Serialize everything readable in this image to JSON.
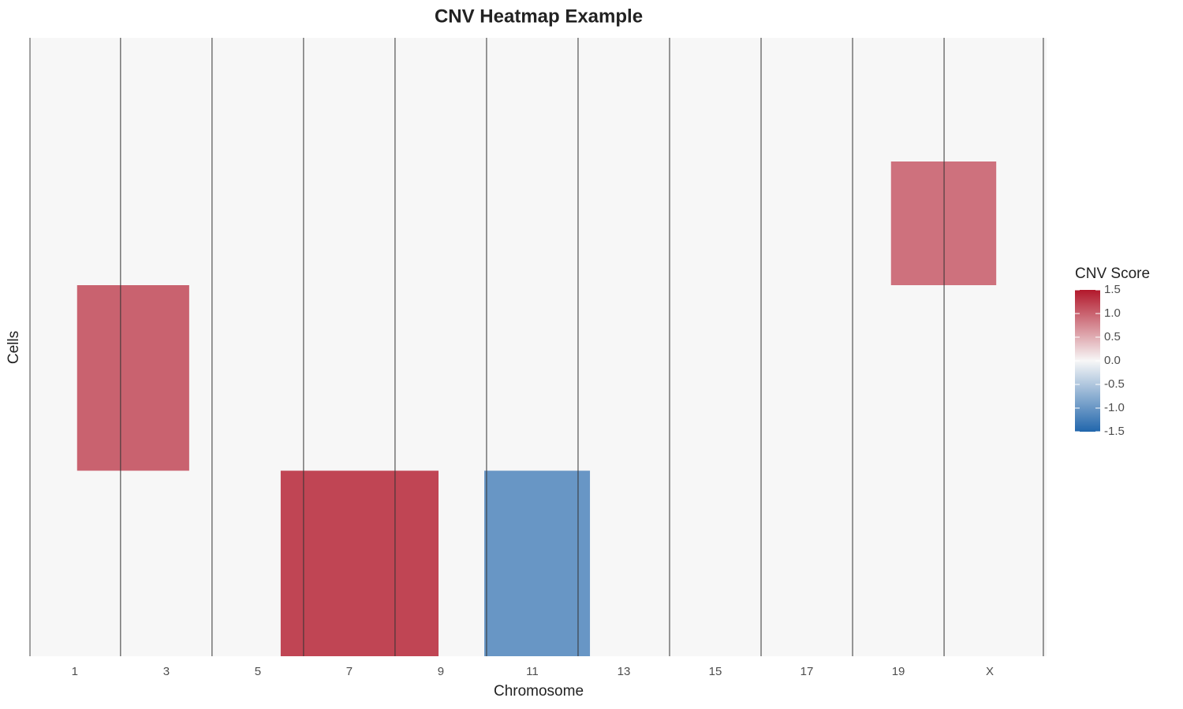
{
  "chart_data": {
    "type": "heatmap",
    "title": "CNV Heatmap Example",
    "x_label": "Chromosome",
    "y_label": "Cells",
    "xlim": [
      0.02,
      22.24
    ],
    "ylim": [
      0,
      150
    ],
    "xticks": [
      1,
      3,
      5,
      7,
      9,
      11,
      13,
      15,
      17,
      19,
      {
        "value": 21,
        "label": "X"
      }
    ],
    "boundaries": [
      2,
      4,
      6,
      8,
      10,
      12,
      14,
      16,
      18,
      20,
      22.17
    ],
    "background_value": 0,
    "regions": [
      {
        "xrange": [
          1.05,
          3.5
        ],
        "yrange": [
          60,
          105
        ],
        "value": 1.0
      },
      {
        "xrange": [
          5.5,
          8.95
        ],
        "yrange": [
          105,
          150
        ],
        "value": 1.2
      },
      {
        "xrange": [
          9.95,
          12.26
        ],
        "yrange": [
          105,
          150
        ],
        "value": -1.0
      },
      {
        "xrange": [
          18.84,
          21.14
        ],
        "yrange": [
          30,
          60
        ],
        "value": 0.9
      }
    ],
    "legend_title": "CNV Score",
    "color_range": [
      -1.5,
      1.5
    ],
    "colors": [
      "#2166ac",
      "#f7f7f7",
      "#b2182b"
    ],
    "legend_ticks": [
      1.5,
      {
        "value": 1.0,
        "label": "1.0"
      },
      0.5,
      {
        "value": 0,
        "label": "0.0"
      },
      -0.5,
      {
        "value": -1.0,
        "label": "-1.0"
      },
      -1.5
    ]
  }
}
